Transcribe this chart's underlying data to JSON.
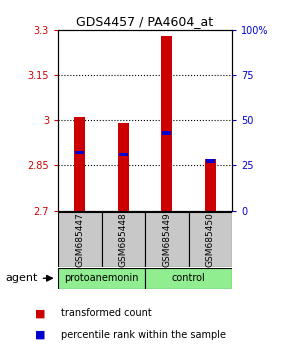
{
  "title": "GDS4457 / PA4604_at",
  "samples": [
    "GSM685447",
    "GSM685448",
    "GSM685449",
    "GSM685450"
  ],
  "red_values": [
    3.01,
    2.99,
    3.28,
    2.87
  ],
  "blue_values": [
    2.893,
    2.887,
    2.957,
    2.865
  ],
  "ymin": 2.7,
  "ymax": 3.3,
  "yticks_left": [
    2.7,
    2.85,
    3.0,
    3.15,
    3.3
  ],
  "yticks_left_labels": [
    "2.7",
    "2.85",
    "3",
    "3.15",
    "3.3"
  ],
  "yticks_right": [
    0,
    25,
    50,
    75,
    100
  ],
  "yticks_right_labels": [
    "0",
    "25",
    "50",
    "75",
    "100%"
  ],
  "hlines": [
    2.85,
    3.0,
    3.15
  ],
  "bar_width": 0.25,
  "bar_bottom": 2.7,
  "sample_box_color": "#c8c8c8",
  "group1_label": "protoanemonin",
  "group2_label": "control",
  "group_color": "#90EE90",
  "agent_label": "agent",
  "red_color": "#cc0000",
  "blue_color": "#0000cc",
  "legend_red_label": "transformed count",
  "legend_blue_label": "percentile rank within the sample"
}
